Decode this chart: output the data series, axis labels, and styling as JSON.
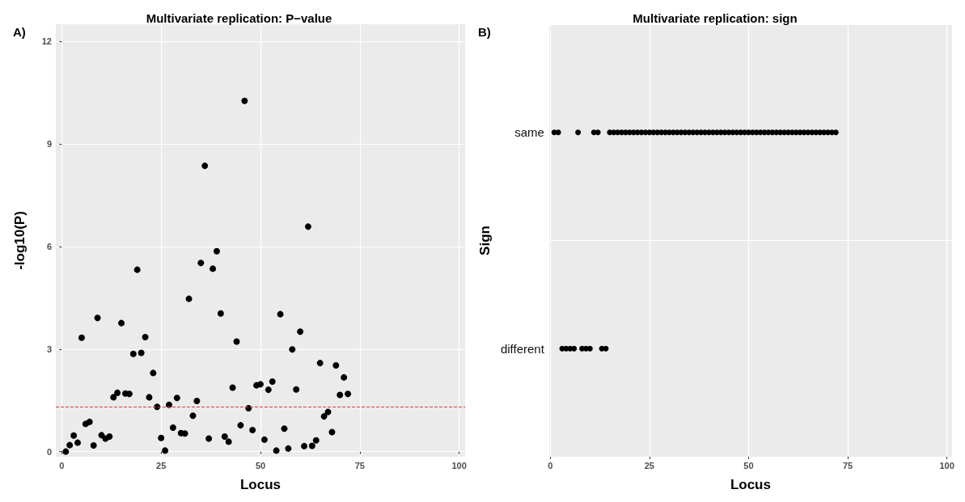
{
  "chart_data": [
    {
      "type": "scatter",
      "title": "Multivariate replication: P−value",
      "xlabel": "Locus",
      "ylabel": "-log10(P)",
      "annotations": [
        "A)"
      ],
      "color": "#000000",
      "marker": "circle",
      "grid": true,
      "x": [
        1,
        2,
        3,
        4,
        5,
        6,
        7,
        8,
        9,
        10,
        11,
        12,
        13,
        14,
        15,
        16,
        17,
        18,
        19,
        20,
        21,
        22,
        23,
        24,
        25,
        26,
        27,
        28,
        29,
        30,
        31,
        32,
        33,
        34,
        35,
        36,
        37,
        38,
        39,
        40,
        41,
        42,
        43,
        44,
        45,
        46,
        47,
        48,
        49,
        50,
        51,
        52,
        53,
        54,
        55,
        56,
        57,
        58,
        59,
        60,
        61,
        62,
        63,
        64,
        65,
        66,
        67,
        68,
        69,
        70,
        71,
        72
      ],
      "values": [
        0.0,
        0.19,
        0.47,
        0.26,
        3.33,
        0.81,
        0.87,
        0.18,
        3.91,
        0.48,
        0.38,
        0.44,
        1.59,
        1.72,
        3.76,
        1.7,
        1.69,
        2.86,
        5.32,
        2.89,
        3.35,
        1.59,
        2.3,
        1.31,
        0.4,
        0.03,
        1.37,
        0.7,
        1.57,
        0.54,
        0.53,
        4.47,
        1.05,
        1.48,
        5.52,
        8.36,
        0.38,
        5.35,
        5.86,
        4.04,
        0.44,
        0.29,
        1.87,
        3.22,
        0.77,
        10.26,
        1.27,
        0.63,
        1.94,
        1.97,
        0.35,
        1.81,
        2.05,
        0.03,
        4.02,
        0.67,
        0.09,
        2.99,
        1.82,
        3.51,
        0.16,
        6.58,
        0.17,
        0.33,
        2.59,
        1.03,
        1.16,
        0.57,
        2.52,
        1.66,
        2.17,
        1.69
      ],
      "xlim": [
        -1.5,
        101.5
      ],
      "xticks": [
        0,
        25,
        50,
        75,
        100
      ],
      "ylim": [
        -0.15,
        12.5
      ],
      "yticks": [
        0,
        3,
        6,
        9,
        12
      ],
      "ref_lines": [
        {
          "axis": "y",
          "value": 1.3,
          "color": "#cc4444",
          "line_style": "dashed"
        }
      ]
    },
    {
      "type": "scatter",
      "title": "Multivariate replication: sign",
      "xlabel": "Locus",
      "ylabel": "Sign",
      "annotations": [
        "B)"
      ],
      "marker": "circle",
      "grid": true,
      "orientation": "horizontal",
      "categories": [
        "same",
        "different"
      ],
      "series": [
        {
          "color": "#000000",
          "x": [
            "same",
            "same",
            "different",
            "different",
            "different",
            "different",
            "same",
            "different",
            "different",
            "different",
            "same",
            "same",
            "different",
            "different",
            "same",
            "same",
            "same",
            "same",
            "same",
            "same",
            "same",
            "same",
            "same",
            "same",
            "same",
            "same",
            "same",
            "same",
            "same",
            "same",
            "same",
            "same",
            "same",
            "same",
            "same",
            "same",
            "same",
            "same",
            "same",
            "same",
            "same",
            "same",
            "same",
            "same",
            "same",
            "same",
            "same",
            "same",
            "same",
            "same",
            "same",
            "same",
            "same",
            "same",
            "same",
            "same",
            "same",
            "same",
            "same",
            "same",
            "same",
            "same",
            "same",
            "same",
            "same",
            "same",
            "same",
            "same",
            "same",
            "same",
            "same",
            "same"
          ],
          "values": [
            1,
            2,
            3,
            4,
            5,
            6,
            7,
            8,
            9,
            10,
            11,
            12,
            13,
            14,
            15,
            16,
            17,
            18,
            19,
            20,
            21,
            22,
            23,
            24,
            25,
            26,
            27,
            28,
            29,
            30,
            31,
            32,
            33,
            34,
            35,
            36,
            37,
            38,
            39,
            40,
            41,
            42,
            43,
            44,
            45,
            46,
            47,
            48,
            49,
            50,
            51,
            52,
            53,
            54,
            55,
            56,
            57,
            58,
            59,
            60,
            61,
            62,
            63,
            64,
            65,
            66,
            67,
            68,
            69,
            70,
            71,
            72
          ]
        }
      ],
      "xlim": [
        -0.3,
        101.3
      ],
      "xticks": [
        0,
        25,
        50,
        75,
        100
      ]
    }
  ]
}
